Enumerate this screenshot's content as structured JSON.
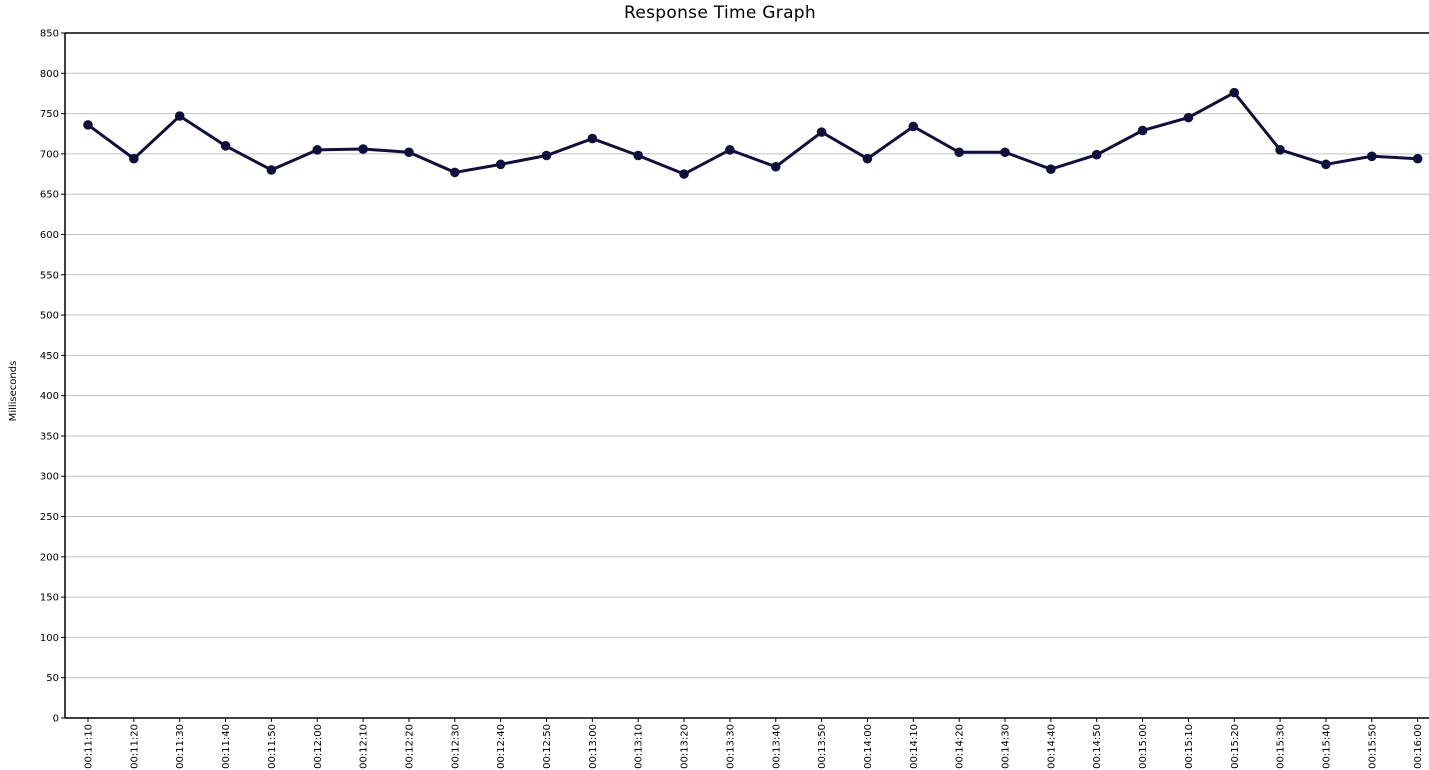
{
  "chart_data": {
    "type": "line",
    "title": "Response Time Graph",
    "xlabel": "",
    "ylabel": "Milliseconds",
    "ylim": [
      0,
      850
    ],
    "yticks": [
      0,
      50,
      100,
      150,
      200,
      250,
      300,
      350,
      400,
      450,
      500,
      550,
      600,
      650,
      700,
      750,
      800,
      850
    ],
    "grid": "horizontal",
    "line_color": "#0f0f3c",
    "x": [
      "00:11:10",
      "00:11:20",
      "00:11:30",
      "00:11:40",
      "00:11:50",
      "00:12:00",
      "00:12:10",
      "00:12:20",
      "00:12:30",
      "00:12:40",
      "00:12:50",
      "00:13:00",
      "00:13:10",
      "00:13:20",
      "00:13:30",
      "00:13:40",
      "00:13:50",
      "00:14:00",
      "00:14:10",
      "00:14:20",
      "00:14:30",
      "00:14:40",
      "00:14:50",
      "00:15:00",
      "00:15:10",
      "00:15:20",
      "00:15:30",
      "00:15:40",
      "00:15:50",
      "00:16:00"
    ],
    "series": [
      {
        "values": [
          736,
          694,
          747,
          710,
          680,
          705,
          706,
          702,
          677,
          687,
          698,
          719,
          698,
          675,
          705,
          684,
          727,
          694,
          734,
          702,
          702,
          681,
          699,
          729,
          745,
          776,
          705,
          687,
          697,
          694
        ]
      }
    ]
  }
}
